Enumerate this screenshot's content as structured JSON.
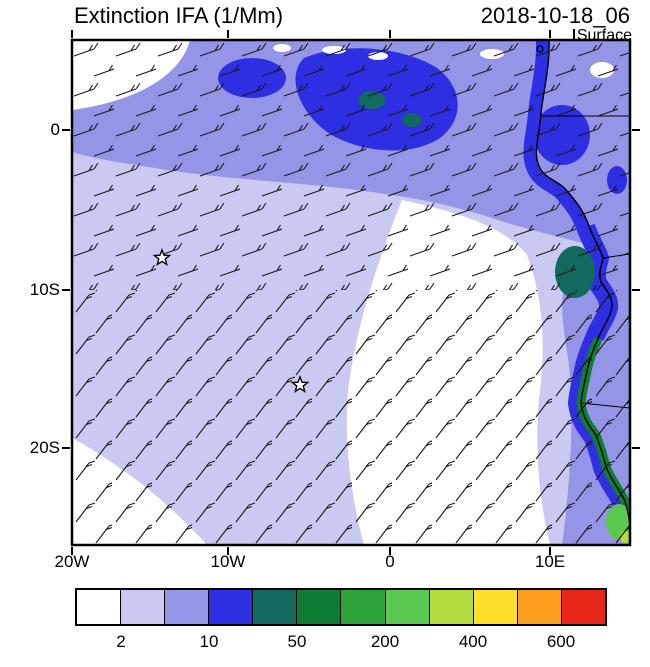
{
  "header": {
    "title": "Extinction IFA (1/Mm)",
    "datetime": "2018-10-18_06",
    "level": "Surface"
  },
  "axes": {
    "y_ticks": [
      "0",
      "10S",
      "20S"
    ],
    "x_ticks": [
      "20W",
      "10W",
      "0",
      "10E"
    ]
  },
  "colorbar": {
    "labels": [
      "2",
      "10",
      "50",
      "200",
      "400",
      "600"
    ],
    "colors": [
      "#ffffff",
      "#c9c9f2",
      "#9595e7",
      "#2e2ee2",
      "#12695f",
      "#0f7d34",
      "#2ca43a",
      "#5bc94f",
      "#b4dc3e",
      "#ffdf2a",
      "#fa9c1c",
      "#e72719"
    ]
  },
  "chart_data": {
    "type": "heatmap",
    "title": "Extinction IFA (1/Mm)",
    "valid_time": "2018-10-18_06",
    "level": "Surface",
    "units": "1/Mm",
    "projection": "lat-lon map, SE Atlantic / SW Africa",
    "lon_range_deg": [
      -20,
      15
    ],
    "lat_range_deg": [
      -26,
      5.6
    ],
    "lon_tick_labels": [
      "20W",
      "10W",
      "0",
      "10E"
    ],
    "lat_tick_labels": [
      "0",
      "10S",
      "20S"
    ],
    "contour_levels": [
      2,
      5,
      10,
      25,
      50,
      100,
      200,
      300,
      400,
      500,
      600
    ],
    "labeled_levels": [
      2,
      10,
      50,
      200,
      400,
      600
    ],
    "palette": [
      "#ffffff",
      "#c9c9f2",
      "#9595e7",
      "#2e2ee2",
      "#12695f",
      "#0f7d34",
      "#2ca43a",
      "#5bc94f",
      "#b4dc3e",
      "#ffdf2a",
      "#fa9c1c",
      "#e72719"
    ],
    "overlays": [
      "surface wind barbs",
      "African coastline",
      "country borders",
      "two star site markers"
    ],
    "star_markers_lonlat": [
      [
        -14.4,
        -8.0
      ],
      [
        -5.8,
        -16.0
      ]
    ],
    "regions": [
      {
        "area": "Gulf of Guinea band, 5N-3S across full width",
        "extinction_1_per_Mm": "5-10 band with 10-50 core near 0-8E"
      },
      {
        "area": "top-left corner and flecks along north edge",
        "extinction_1_per_Mm": "<2"
      },
      {
        "area": "broad offshore plume west of Angola (most of map)",
        "extinction_1_per_Mm": "2-5"
      },
      {
        "area": "central/SE open ocean wedge and SW corner",
        "extinction_1_per_Mm": "<2"
      },
      {
        "area": "coastal strip Gabon-Angola-Namibia",
        "extinction_1_per_Mm": "10-100, dark green/teal maxima 50-300 at coast"
      },
      {
        "area": "bottom-right corner at Namibian coast",
        "extinction_1_per_Mm": "100-300 (bright green)"
      }
    ]
  }
}
